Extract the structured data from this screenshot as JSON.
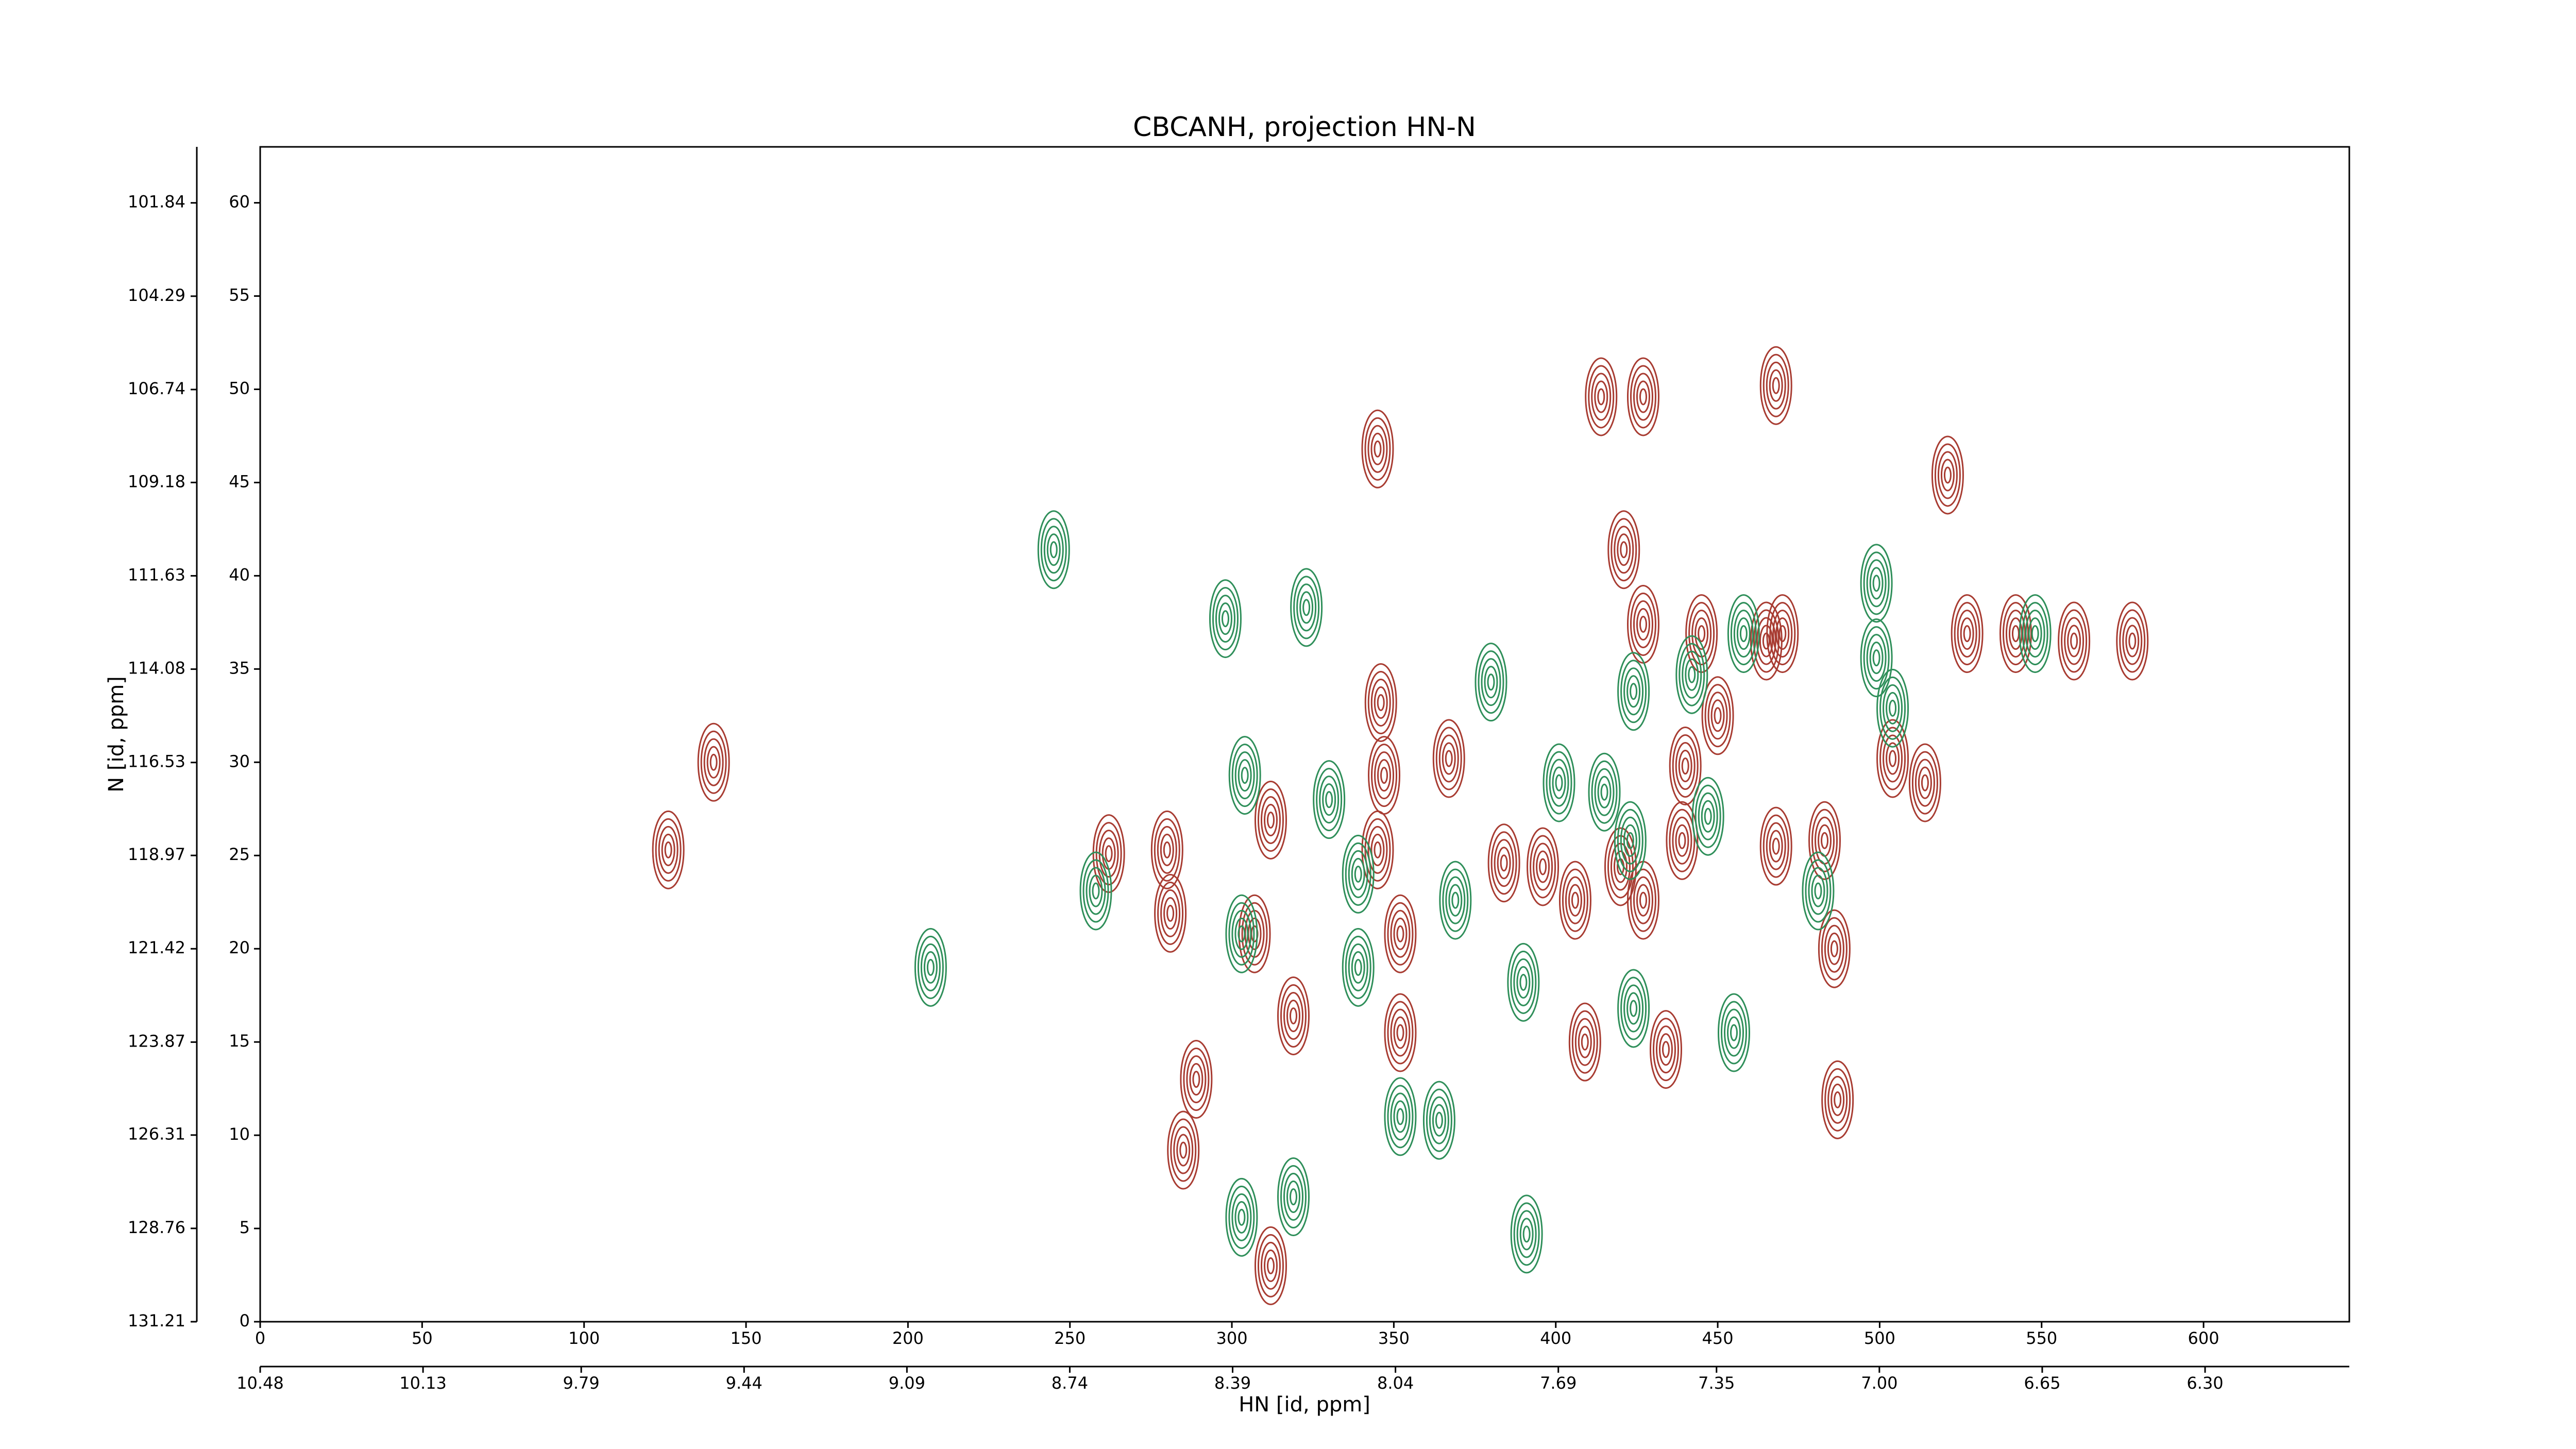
{
  "chart_data": {
    "type": "contour",
    "title": "CBCANH, projection HN-N",
    "x_label": "HN [id, ppm]",
    "y_label": "N [id, ppm]",
    "xlim": [
      0,
      645
    ],
    "ylim": [
      0,
      63
    ],
    "xticks": [
      0,
      50,
      100,
      150,
      200,
      250,
      300,
      350,
      400,
      450,
      500,
      550,
      600
    ],
    "yticks": [
      0,
      5,
      10,
      15,
      20,
      25,
      30,
      35,
      40,
      45,
      50,
      55,
      60
    ],
    "x2lim": [
      10.48,
      5.99
    ],
    "x2ticks": [
      10.48,
      10.13,
      9.79,
      9.44,
      9.09,
      8.74,
      8.39,
      8.04,
      {
        "value": 7.69,
        "label": "7.69"
      },
      {
        "value": 7.35,
        "label": "7.35"
      },
      {
        "value": 7.0,
        "label": "7.00"
      },
      {
        "value": 6.65,
        "label": "6.65"
      },
      {
        "value": 6.3,
        "label": "6.30"
      }
    ],
    "y2lim": [
      131.21,
      100.37
    ],
    "y2ticks": [
      131.21,
      128.76,
      126.31,
      123.87,
      121.42,
      118.97,
      116.53,
      114.08,
      111.63,
      109.18,
      106.74,
      104.29,
      101.84
    ],
    "series": [
      {
        "color": "#a83c32",
        "x": [
          126,
          140,
          345,
          414,
          427,
          468,
          521,
          421,
          346,
          262,
          280,
          281,
          312,
          307,
          319,
          289,
          285,
          312,
          352,
          345,
          347,
          367,
          384,
          396,
          406,
          420,
          427,
          439,
          440,
          450,
          445,
          465,
          470,
          468,
          483,
          486,
          487,
          504,
          514,
          527,
          542,
          560,
          578,
          434,
          409,
          352,
          427
        ],
        "y": [
          25.3,
          30,
          46.8,
          49.6,
          49.6,
          50.2,
          45.4,
          41.4,
          33.2,
          25.1,
          25.3,
          21.9,
          26.9,
          20.8,
          16.4,
          13,
          9.2,
          3,
          15.5,
          25.3,
          29.3,
          30.2,
          24.6,
          24.4,
          22.6,
          24.4,
          22.6,
          25.8,
          29.8,
          32.5,
          36.9,
          36.5,
          36.9,
          25.5,
          25.8,
          20,
          11.9,
          30.2,
          28.9,
          36.9,
          36.9,
          36.5,
          36.5,
          14.6,
          15,
          20.8,
          37.4
        ]
      },
      {
        "color": "#2f8f5a",
        "x": [
          245,
          298,
          323,
          258,
          304,
          303,
          330,
          339,
          339,
          369,
          390,
          391,
          319,
          303,
          352,
          364,
          380,
          401,
          415,
          424,
          424,
          455,
          442,
          447,
          458,
          499,
          499,
          504,
          548,
          481,
          207,
          423
        ],
        "y": [
          41.4,
          37.7,
          38.3,
          23.1,
          29.3,
          20.8,
          28,
          24,
          19,
          22.6,
          18.2,
          4.7,
          6.7,
          5.6,
          11,
          10.8,
          34.3,
          28.9,
          28.4,
          33.8,
          16.8,
          15.5,
          34.7,
          27.1,
          36.9,
          39.6,
          35.6,
          32.9,
          36.9,
          23.1,
          19,
          25.8
        ]
      }
    ]
  }
}
